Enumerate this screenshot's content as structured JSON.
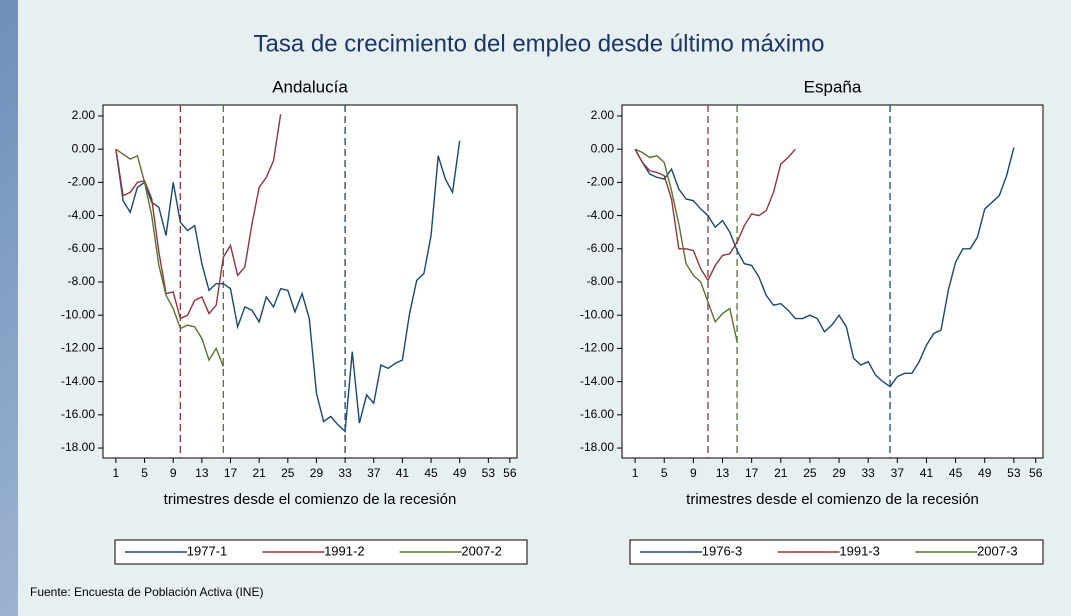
{
  "title": "Tasa de crecimiento del empleo desde último máximo",
  "source": "Fuente: Encuesta de Población Activa (INE)",
  "chart_data": [
    {
      "type": "line",
      "title": "Andalucía",
      "xlabel": "trimestres desde el comienzo de la recesión",
      "xlim": [
        -0.8,
        57
      ],
      "xticks": [
        1,
        5,
        9,
        13,
        17,
        21,
        25,
        29,
        33,
        37,
        41,
        45,
        49,
        53,
        56
      ],
      "ylim": [
        -18.6,
        2.66
      ],
      "yticks": [
        {
          "value": 2,
          "label": "2.00"
        },
        {
          "value": 0,
          "label": "0.00"
        },
        {
          "value": -2,
          "label": "-2.00"
        },
        {
          "value": -4,
          "label": "-4.00"
        },
        {
          "value": -6,
          "label": "-6.00"
        },
        {
          "value": -8,
          "label": "-8.00"
        },
        {
          "value": -10,
          "label": "-10.00"
        },
        {
          "value": -12,
          "label": "-12.00"
        },
        {
          "value": -14,
          "label": "-14.00"
        },
        {
          "value": -16,
          "label": "-16.00"
        },
        {
          "value": -18,
          "label": "-18.00"
        }
      ],
      "series": [
        {
          "name": "1977-1",
          "color": "#1a476f",
          "x": [
            1,
            2,
            3,
            4,
            5,
            6,
            7,
            8,
            9,
            10,
            11,
            12,
            13,
            14,
            15,
            16,
            17,
            18,
            19,
            20,
            21,
            22,
            23,
            24,
            25,
            26,
            27,
            28,
            29,
            30,
            31,
            32,
            33,
            34,
            35,
            36,
            37,
            38,
            39,
            40,
            41,
            42,
            43,
            44,
            45,
            46,
            47,
            48,
            49
          ],
          "values": [
            0,
            -3.1,
            -3.8,
            -2.3,
            -2.0,
            -3.2,
            -3.5,
            -5.2,
            -2.0,
            -4.4,
            -4.9,
            -4.6,
            -6.9,
            -8.5,
            -8.1,
            -8.1,
            -8.4,
            -10.7,
            -9.5,
            -9.7,
            -10.4,
            -8.9,
            -9.5,
            -8.4,
            -8.5,
            -9.8,
            -8.7,
            -10.2,
            -14.7,
            -16.4,
            -16.1,
            -16.6,
            -17.0,
            -12.2,
            -16.5,
            -14.8,
            -15.3,
            -13.0,
            -13.2,
            -12.9,
            -12.7,
            -9.9,
            -7.9,
            -7.5,
            -5.2,
            -0.4,
            -1.8,
            -2.6,
            0.5
          ]
        },
        {
          "name": "1991-2",
          "color": "#90353b",
          "x": [
            1,
            2,
            3,
            4,
            5,
            6,
            7,
            8,
            9,
            10,
            11,
            12,
            13,
            14,
            15,
            16,
            17,
            18,
            19,
            20,
            21,
            22,
            23,
            24
          ],
          "values": [
            0,
            -2.8,
            -2.6,
            -2.0,
            -1.9,
            -3.0,
            -6.2,
            -8.7,
            -8.6,
            -10.2,
            -10.0,
            -9.1,
            -8.9,
            -9.9,
            -9.4,
            -6.5,
            -5.8,
            -7.6,
            -7.1,
            -4.5,
            -2.3,
            -1.7,
            -0.7,
            2.1
          ]
        },
        {
          "name": "2007-2",
          "color": "#55752f",
          "x": [
            1,
            2,
            3,
            4,
            5,
            6,
            7,
            8,
            9,
            10,
            11,
            12,
            13,
            14,
            15,
            16
          ],
          "values": [
            0,
            -0.3,
            -0.6,
            -0.4,
            -2.0,
            -4.0,
            -7.0,
            -8.8,
            -9.6,
            -10.8,
            -10.6,
            -10.7,
            -11.4,
            -12.7,
            -12.0,
            -13.1
          ]
        }
      ],
      "vlines": [
        {
          "x": 10,
          "color": "#90353b"
        },
        {
          "x": 16,
          "color": "#55752f"
        },
        {
          "x": 33,
          "color": "#1a476f"
        }
      ]
    },
    {
      "type": "line",
      "title": "España",
      "xlabel": "trimestres desde el comienzo de la recesión",
      "xlim": [
        -0.8,
        57
      ],
      "xticks": [
        1,
        5,
        9,
        13,
        17,
        21,
        25,
        29,
        33,
        37,
        41,
        45,
        49,
        53,
        56
      ],
      "ylim": [
        -18.6,
        2.66
      ],
      "yticks": [
        {
          "value": 2,
          "label": "2.00"
        },
        {
          "value": 0,
          "label": "0.00"
        },
        {
          "value": -2,
          "label": "-2.00"
        },
        {
          "value": -4,
          "label": "-4.00"
        },
        {
          "value": -6,
          "label": "-6.00"
        },
        {
          "value": -8,
          "label": "-8.00"
        },
        {
          "value": -10,
          "label": "-10.00"
        },
        {
          "value": -12,
          "label": "-12.00"
        },
        {
          "value": -14,
          "label": "-14.00"
        },
        {
          "value": -16,
          "label": "-16.00"
        },
        {
          "value": -18,
          "label": "-18.00"
        }
      ],
      "series": [
        {
          "name": "1976-3",
          "color": "#1a476f",
          "x": [
            1,
            2,
            3,
            4,
            5,
            6,
            7,
            8,
            9,
            10,
            11,
            12,
            13,
            14,
            15,
            16,
            17,
            18,
            19,
            20,
            21,
            22,
            23,
            24,
            25,
            26,
            27,
            28,
            29,
            30,
            31,
            32,
            33,
            34,
            35,
            36,
            37,
            38,
            39,
            40,
            41,
            42,
            43,
            44,
            45,
            46,
            47,
            48,
            49,
            50,
            51,
            52,
            53
          ],
          "values": [
            0,
            -0.8,
            -1.5,
            -1.7,
            -1.8,
            -1.2,
            -2.4,
            -3.0,
            -3.1,
            -3.6,
            -4.0,
            -4.7,
            -4.3,
            -5.0,
            -6.1,
            -6.9,
            -7.0,
            -7.7,
            -8.8,
            -9.4,
            -9.3,
            -9.7,
            -10.2,
            -10.2,
            -10.0,
            -10.2,
            -11.0,
            -10.6,
            -10.0,
            -10.7,
            -12.6,
            -13.0,
            -12.8,
            -13.6,
            -14.0,
            -14.3,
            -13.7,
            -13.5,
            -13.5,
            -12.8,
            -11.8,
            -11.1,
            -10.9,
            -8.5,
            -6.8,
            -6.0,
            -6.0,
            -5.3,
            -3.6,
            -3.2,
            -2.8,
            -1.6,
            0.1
          ]
        },
        {
          "name": "1991-3",
          "color": "#90353b",
          "x": [
            1,
            2,
            3,
            4,
            5,
            6,
            7,
            8,
            9,
            10,
            11,
            12,
            13,
            14,
            15,
            16,
            17,
            18,
            19,
            20,
            21,
            22,
            23
          ],
          "values": [
            0,
            -0.8,
            -1.3,
            -1.4,
            -1.6,
            -3.0,
            -6.0,
            -6.0,
            -6.1,
            -7.2,
            -7.9,
            -7.0,
            -6.4,
            -6.3,
            -5.6,
            -4.6,
            -3.9,
            -4.0,
            -3.7,
            -2.6,
            -0.9,
            -0.5,
            0.0
          ]
        },
        {
          "name": "2007-3",
          "color": "#55752f",
          "x": [
            1,
            2,
            3,
            4,
            5,
            6,
            7,
            8,
            9,
            10,
            11,
            12,
            13,
            14,
            15
          ],
          "values": [
            0,
            -0.2,
            -0.5,
            -0.4,
            -0.8,
            -2.5,
            -4.5,
            -6.9,
            -7.6,
            -8.0,
            -9.2,
            -10.4,
            -9.9,
            -9.6,
            -11.6
          ]
        }
      ],
      "vlines": [
        {
          "x": 11,
          "color": "#90353b"
        },
        {
          "x": 15,
          "color": "#55752f"
        },
        {
          "x": 36,
          "color": "#1a476f"
        }
      ]
    }
  ]
}
